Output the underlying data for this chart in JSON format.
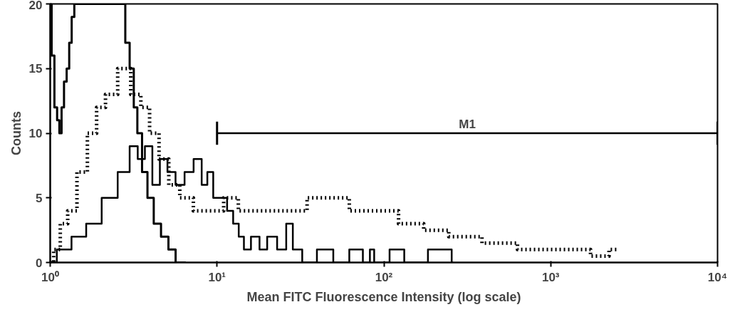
{
  "chart_data": {
    "type": "step",
    "xlabel": "Mean FITC Fluorescence Intensity (log scale)",
    "ylabel": "Counts",
    "log": "x",
    "grid": false,
    "xlim": [
      1,
      10000
    ],
    "ylim": [
      0,
      20
    ],
    "xticks": [
      {
        "value": 1,
        "label": "10⁰"
      },
      {
        "value": 10,
        "label": "10¹"
      },
      {
        "value": 100,
        "label": "10²"
      },
      {
        "value": 1000,
        "label": "10³"
      },
      {
        "value": 10000,
        "label": "10⁴"
      }
    ],
    "yticks": [
      0,
      5,
      10,
      15,
      20
    ],
    "series": [
      {
        "type": "line",
        "name": "M1",
        "color": "#000000",
        "x": [
          10,
          10000
        ],
        "values": [
          10,
          10
        ],
        "errors": [
          0.9,
          0.9
        ]
      },
      {
        "color": "#000000",
        "line_style": "solid",
        "x": [
          1.0,
          1.04,
          1.08,
          1.12,
          1.15,
          1.19,
          1.23,
          1.28,
          1.32,
          1.37,
          1.42,
          2.74,
          2.9,
          3.09,
          3.25,
          3.41,
          3.7,
          3.96,
          4.4,
          4.84,
          5.4,
          5.9,
          6.5
        ],
        "values": [
          20,
          16,
          12,
          11,
          10,
          12,
          14,
          15,
          17,
          19,
          20,
          20,
          17,
          15,
          12,
          10,
          7,
          5,
          3,
          2,
          1,
          0,
          0
        ]
      },
      {
        "color": "#000000",
        "line_style": "dotted",
        "x": [
          1.0,
          1.1,
          1.2,
          1.35,
          1.55,
          1.8,
          2.0,
          2.3,
          2.8,
          3.3,
          3.7,
          4.2,
          4.8,
          5.5,
          6.5,
          8,
          10,
          12,
          15,
          20,
          30,
          40,
          55,
          70,
          100,
          150,
          200,
          300,
          500,
          800,
          1500,
          2000,
          2500
        ],
        "values": [
          0,
          1,
          3,
          4,
          7,
          10,
          12,
          13,
          15,
          13,
          12,
          10,
          8,
          6,
          5,
          4,
          4,
          5,
          4,
          4,
          4,
          5,
          5,
          4,
          4,
          3,
          2.5,
          2,
          1.5,
          1,
          1,
          0.5,
          1
        ]
      },
      {
        "color": "#000000",
        "line_style": "solid",
        "x": [
          1.0,
          1.2,
          1.5,
          1.8,
          2.3,
          2.8,
          3.2,
          3.5,
          3.9,
          4.3,
          4.8,
          5.3,
          6,
          6.8,
          7.7,
          8.5,
          9,
          10,
          11,
          12,
          13,
          14,
          15,
          17,
          19,
          21,
          25,
          27,
          30,
          35,
          45,
          55,
          70,
          80,
          85,
          90,
          130,
          135,
          250,
          260
        ],
        "values": [
          0,
          1,
          2,
          3,
          5,
          7,
          9,
          8,
          9,
          6,
          8,
          7,
          6,
          7,
          8,
          6,
          7,
          5,
          5,
          4,
          3,
          2,
          1,
          2,
          1,
          2,
          1,
          3,
          1,
          0,
          1,
          0,
          1,
          0,
          1,
          0,
          1,
          0,
          1,
          0
        ]
      }
    ]
  }
}
